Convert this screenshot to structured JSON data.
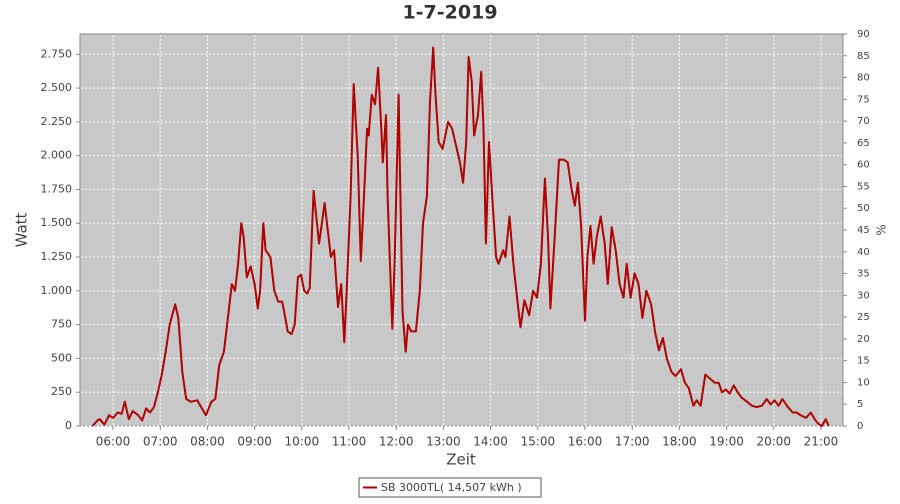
{
  "chart_data": {
    "type": "line",
    "title": "1-7-2019",
    "x_label": "Zeit",
    "y_label": "Watt",
    "y2_label": "%",
    "x": [
      "05:34",
      "05:40",
      "05:43",
      "05:49",
      "05:55",
      "06:00",
      "06:06",
      "06:11",
      "06:15",
      "06:20",
      "06:25",
      "06:32",
      "06:37",
      "06:42",
      "06:47",
      "06:52",
      "06:57",
      "07:02",
      "07:07",
      "07:12",
      "07:19",
      "07:23",
      "07:28",
      "07:33",
      "07:39",
      "07:47",
      "07:53",
      "07:58",
      "08:05",
      "08:10",
      "08:15",
      "08:21",
      "08:27",
      "08:31",
      "08:35",
      "08:39",
      "08:43",
      "08:46",
      "08:50",
      "08:55",
      "09:00",
      "09:04",
      "09:07",
      "09:11",
      "09:14",
      "09:20",
      "09:25",
      "09:30",
      "09:35",
      "09:39",
      "09:42",
      "09:47",
      "09:51",
      "09:55",
      "09:59",
      "10:03",
      "10:07",
      "10:10",
      "10:15",
      "10:22",
      "10:29",
      "10:37",
      "10:41",
      "10:46",
      "10:50",
      "10:54",
      "10:57",
      "11:02",
      "11:06",
      "11:11",
      "11:15",
      "11:19",
      "11:23",
      "11:25",
      "11:29",
      "11:33",
      "11:37",
      "11:41",
      "11:43",
      "11:47",
      "11:49",
      "11:55",
      "11:58",
      "12:03",
      "12:06",
      "12:08",
      "12:12",
      "12:15",
      "12:19",
      "12:25",
      "12:30",
      "12:34",
      "12:39",
      "12:43",
      "12:47",
      "12:50",
      "12:54",
      "12:59",
      "13:06",
      "13:11",
      "13:17",
      "13:21",
      "13:25",
      "13:29",
      "13:32",
      "13:36",
      "13:39",
      "13:44",
      "13:48",
      "13:51",
      "13:54",
      "13:58",
      "14:02",
      "14:07",
      "14:10",
      "14:16",
      "14:19",
      "14:24",
      "14:29",
      "14:35",
      "14:38",
      "14:43",
      "14:49",
      "14:54",
      "14:59",
      "15:04",
      "15:09",
      "15:13",
      "15:16",
      "15:22",
      "15:27",
      "15:33",
      "15:38",
      "15:43",
      "15:47",
      "15:51",
      "15:55",
      "16:00",
      "16:03",
      "16:07",
      "16:11",
      "16:15",
      "16:20",
      "16:25",
      "16:29",
      "16:34",
      "16:39",
      "16:44",
      "16:49",
      "16:53",
      "16:58",
      "17:03",
      "17:08",
      "17:13",
      "17:18",
      "17:24",
      "17:29",
      "17:34",
      "17:39",
      "17:44",
      "17:50",
      "17:55",
      "18:02",
      "18:07",
      "18:12",
      "18:18",
      "18:22",
      "18:27",
      "18:33",
      "18:39",
      "18:45",
      "18:50",
      "18:54",
      "18:59",
      "19:04",
      "19:09",
      "19:14",
      "19:19",
      "19:26",
      "19:32",
      "19:38",
      "19:45",
      "19:51",
      "19:56",
      "20:01",
      "20:06",
      "20:11",
      "20:18",
      "20:24",
      "20:29",
      "20:34",
      "20:41",
      "20:47",
      "20:52",
      "20:56",
      "21:01",
      "21:06",
      "21:10"
    ],
    "series": [
      {
        "name": "SB 3000TL( 14,507 kWh )",
        "color": "#b00000",
        "values": [
          0,
          40,
          50,
          10,
          80,
          60,
          100,
          90,
          180,
          50,
          110,
          80,
          40,
          130,
          100,
          140,
          250,
          380,
          550,
          750,
          900,
          800,
          400,
          200,
          180,
          190,
          130,
          80,
          180,
          200,
          450,
          550,
          850,
          1050,
          1000,
          1200,
          1500,
          1400,
          1100,
          1180,
          1050,
          870,
          1000,
          1500,
          1300,
          1250,
          1000,
          920,
          920,
          800,
          700,
          680,
          750,
          1100,
          1120,
          1000,
          980,
          1020,
          1740,
          1350,
          1650,
          1250,
          1300,
          880,
          1050,
          620,
          1000,
          1700,
          2530,
          2000,
          1220,
          1700,
          2200,
          2150,
          2450,
          2380,
          2650,
          2200,
          1950,
          2300,
          1700,
          720,
          1200,
          2450,
          1500,
          850,
          550,
          750,
          700,
          700,
          1000,
          1500,
          1700,
          2400,
          2800,
          2450,
          2100,
          2050,
          2250,
          2200,
          2050,
          1950,
          1800,
          2100,
          2730,
          2550,
          2150,
          2300,
          2620,
          2200,
          1350,
          2100,
          1700,
          1250,
          1200,
          1300,
          1250,
          1550,
          1200,
          880,
          730,
          930,
          820,
          1000,
          950,
          1200,
          1830,
          1400,
          870,
          1450,
          1970,
          1970,
          1950,
          1750,
          1630,
          1800,
          1480,
          780,
          1250,
          1480,
          1200,
          1400,
          1550,
          1350,
          1050,
          1470,
          1300,
          1050,
          950,
          1200,
          950,
          1130,
          1050,
          800,
          1000,
          900,
          700,
          560,
          650,
          500,
          400,
          370,
          420,
          320,
          280,
          150,
          190,
          150,
          380,
          350,
          320,
          320,
          250,
          270,
          240,
          300,
          250,
          210,
          180,
          150,
          140,
          150,
          200,
          160,
          190,
          150,
          200,
          140,
          100,
          100,
          80,
          60,
          100,
          50,
          20,
          0,
          50,
          0
        ]
      }
    ],
    "xlim": [
      "05:18",
      "21:28"
    ],
    "xticks": [
      "06:00",
      "07:00",
      "08:00",
      "09:00",
      "10:00",
      "11:00",
      "12:00",
      "13:00",
      "14:00",
      "15:00",
      "16:00",
      "17:00",
      "18:00",
      "19:00",
      "20:00",
      "21:00"
    ],
    "ylim": [
      0,
      2900
    ],
    "yticks": [
      0,
      250,
      500,
      750,
      {
        "value": 1000,
        "label": "1.000"
      },
      {
        "value": 1250,
        "label": "1.250"
      },
      {
        "value": 1500,
        "label": "1.500"
      },
      {
        "value": 1750,
        "label": "1.750"
      },
      {
        "value": 2000,
        "label": "2.000"
      },
      {
        "value": 2250,
        "label": "2.250"
      },
      {
        "value": 2500,
        "label": "2.500"
      },
      {
        "value": 2750,
        "label": "2.750"
      }
    ],
    "y2lim": [
      0,
      90
    ],
    "y2ticks": [
      0,
      5,
      10,
      15,
      20,
      25,
      30,
      35,
      40,
      45,
      50,
      55,
      60,
      65,
      70,
      75,
      80,
      85,
      90
    ],
    "grid": true,
    "legend": "bottom"
  }
}
